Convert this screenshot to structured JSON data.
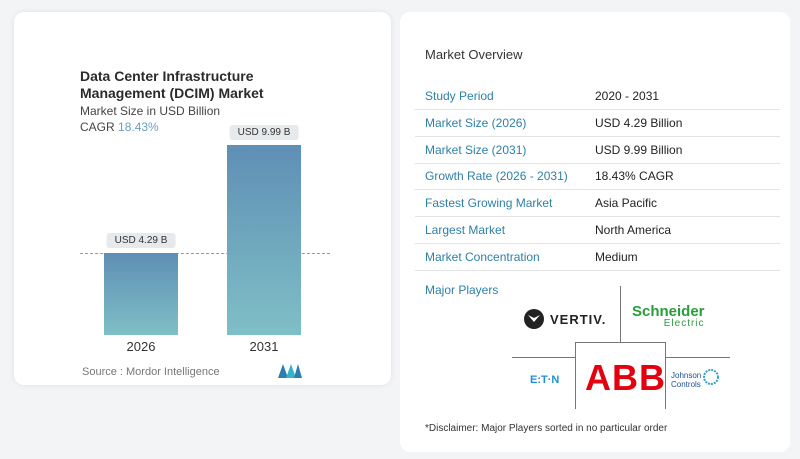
{
  "chart_data": {
    "type": "bar",
    "title": "Data Center Infrastructure Management (DCIM) Market",
    "subtitle": "Market Size in USD Billion",
    "cagr_label": "CAGR",
    "cagr_value": "18.43%",
    "categories": [
      "2026",
      "2031"
    ],
    "values": [
      4.29,
      9.99
    ],
    "data_labels": [
      "USD 4.29 B",
      "USD 9.99 B"
    ],
    "colors": {
      "bar_top": "#5f8fb5",
      "bar_bottom": "#7fbfc6",
      "cagr": "#6a9fc0"
    },
    "source": "Source :  Mordor Intelligence"
  },
  "overview": {
    "title": "Market Overview",
    "rows": [
      {
        "label": "Study Period",
        "value": "2020 - 2031"
      },
      {
        "label": "Market Size (2026)",
        "value": "USD 4.29 Billion"
      },
      {
        "label": "Market Size (2031)",
        "value": "USD 9.99 Billion"
      },
      {
        "label": "Growth Rate (2026 - 2031)",
        "value": "18.43% CAGR"
      },
      {
        "label": "Fastest Growing Market",
        "value": "Asia Pacific"
      },
      {
        "label": "Largest Market",
        "value": "North America"
      },
      {
        "label": "Market Concentration",
        "value": "Medium"
      }
    ]
  },
  "players": {
    "title": "Major Players",
    "logos": [
      "VERTIV.",
      "Schneider",
      "Electric",
      "ABB",
      "E:T·N",
      "Johnson",
      "Controls"
    ],
    "disclaimer": "*Disclaimer: Major Players sorted in no particular order"
  }
}
